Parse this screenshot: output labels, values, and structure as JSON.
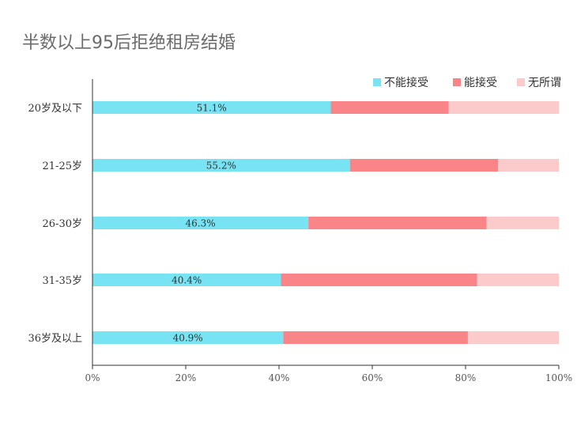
{
  "chart_data": {
    "type": "bar",
    "orientation": "horizontal",
    "stacked": true,
    "percent": true,
    "title": "半数以上95后拒绝租房结婚",
    "categories": [
      "20岁及以下",
      "21-25岁",
      "26-30岁",
      "31-35岁",
      "36岁及以上"
    ],
    "series": [
      {
        "name": "不能接受",
        "color": "#78e3f3",
        "values": [
          51.1,
          55.2,
          46.3,
          40.4,
          40.9
        ]
      },
      {
        "name": "能接受",
        "color": "#fa8589",
        "values": [
          25.3,
          31.8,
          38.2,
          42.1,
          39.6
        ]
      },
      {
        "name": "无所谓",
        "color": "#fbcacb",
        "values": [
          23.6,
          13.0,
          15.5,
          17.5,
          19.5
        ]
      }
    ],
    "data_labels": [
      "51.1%",
      "55.2%",
      "46.3%",
      "40.4%",
      "40.9%"
    ],
    "xlim": [
      0,
      100
    ],
    "xticks": [
      "0%",
      "20%",
      "40%",
      "60%",
      "80%",
      "100%"
    ],
    "grid": false,
    "legend_position": "top-right"
  }
}
